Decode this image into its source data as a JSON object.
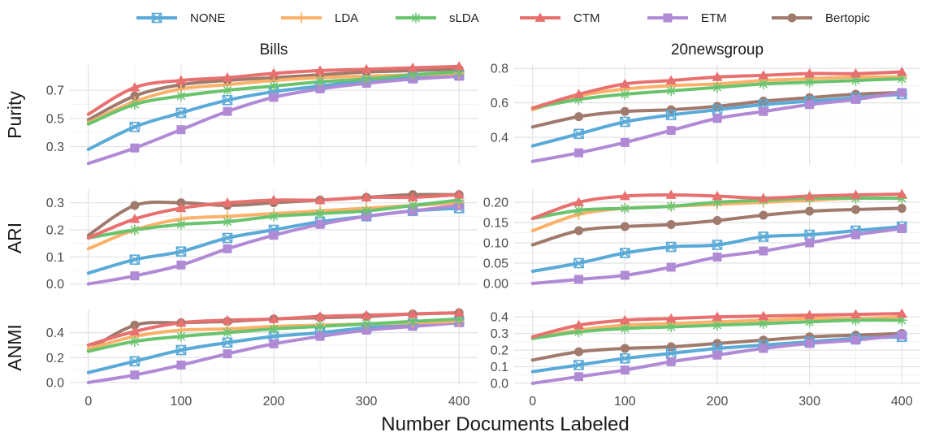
{
  "chart_data": {
    "type": "line",
    "xlabel": "Number Documents Labeled",
    "x": [
      0,
      50,
      100,
      150,
      200,
      250,
      300,
      350,
      400
    ],
    "xticks": [
      0,
      100,
      200,
      300,
      400
    ],
    "columns": [
      "Bills",
      "20newsgroup"
    ],
    "metrics": [
      "Purity",
      "ARI",
      "ANMI"
    ],
    "legend_position": "top",
    "legend": [
      {
        "key": "NONE",
        "label": "NONE",
        "color": "#5aaad8",
        "marker": "boxx"
      },
      {
        "key": "LDA",
        "label": "LDA",
        "color": "#fbb168",
        "marker": "plus"
      },
      {
        "key": "sLDA",
        "label": "sLDA",
        "color": "#6ac46e",
        "marker": "star"
      },
      {
        "key": "CTM",
        "label": "CTM",
        "color": "#e8706f",
        "marker": "triangle"
      },
      {
        "key": "ETM",
        "label": "ETM",
        "color": "#b18ad6",
        "marker": "square"
      },
      {
        "key": "Bertopic",
        "label": "Bertopic",
        "color": "#a07a6c",
        "marker": "circle"
      }
    ],
    "panels": [
      {
        "metric": "Purity",
        "column": "Bills",
        "ylim": [
          0.17,
          0.88
        ],
        "yticks": [
          0.3,
          0.5,
          0.7
        ],
        "ytick_labels": [
          "0.3",
          "0.5",
          "0.7"
        ],
        "series": {
          "NONE": [
            0.28,
            0.44,
            0.54,
            0.63,
            0.69,
            0.73,
            0.77,
            0.79,
            0.81
          ],
          "LDA": [
            0.47,
            0.62,
            0.71,
            0.74,
            0.77,
            0.79,
            0.8,
            0.81,
            0.82
          ],
          "sLDA": [
            0.46,
            0.6,
            0.66,
            0.7,
            0.73,
            0.76,
            0.78,
            0.81,
            0.83
          ],
          "CTM": [
            0.53,
            0.72,
            0.77,
            0.79,
            0.82,
            0.84,
            0.85,
            0.86,
            0.87
          ],
          "ETM": [
            0.18,
            0.29,
            0.42,
            0.55,
            0.65,
            0.71,
            0.75,
            0.78,
            0.8
          ],
          "Bertopic": [
            0.49,
            0.66,
            0.74,
            0.77,
            0.79,
            0.81,
            0.83,
            0.84,
            0.85
          ]
        }
      },
      {
        "metric": "Purity",
        "column": "20newsgroup",
        "ylim": [
          0.24,
          0.82
        ],
        "yticks": [
          0.4,
          0.6,
          0.8
        ],
        "ytick_labels": [
          "0.4",
          "0.6",
          "0.8"
        ],
        "series": {
          "NONE": [
            0.35,
            0.42,
            0.49,
            0.53,
            0.56,
            0.59,
            0.61,
            0.63,
            0.65
          ],
          "LDA": [
            0.56,
            0.64,
            0.68,
            0.7,
            0.71,
            0.73,
            0.74,
            0.75,
            0.75
          ],
          "sLDA": [
            0.57,
            0.62,
            0.65,
            0.67,
            0.69,
            0.71,
            0.72,
            0.73,
            0.74
          ],
          "CTM": [
            0.57,
            0.65,
            0.71,
            0.73,
            0.75,
            0.76,
            0.77,
            0.77,
            0.78
          ],
          "ETM": [
            0.26,
            0.31,
            0.37,
            0.44,
            0.51,
            0.55,
            0.59,
            0.62,
            0.66
          ],
          "Bertopic": [
            0.46,
            0.52,
            0.55,
            0.56,
            0.58,
            0.61,
            0.63,
            0.65,
            0.66
          ]
        }
      },
      {
        "metric": "ARI",
        "column": "Bills",
        "ylim": [
          -0.01,
          0.35
        ],
        "yticks": [
          0.0,
          0.1,
          0.2,
          0.3
        ],
        "ytick_labels": [
          "0.0",
          "0.1",
          "0.2",
          "0.3"
        ],
        "series": {
          "NONE": [
            0.04,
            0.09,
            0.12,
            0.17,
            0.2,
            0.23,
            0.25,
            0.27,
            0.28
          ],
          "LDA": [
            0.13,
            0.2,
            0.24,
            0.25,
            0.26,
            0.27,
            0.28,
            0.29,
            0.3
          ],
          "sLDA": [
            0.17,
            0.2,
            0.22,
            0.23,
            0.25,
            0.26,
            0.27,
            0.29,
            0.31
          ],
          "CTM": [
            0.17,
            0.24,
            0.28,
            0.3,
            0.31,
            0.31,
            0.32,
            0.32,
            0.33
          ],
          "ETM": [
            0.0,
            0.03,
            0.07,
            0.13,
            0.18,
            0.22,
            0.25,
            0.27,
            0.29
          ],
          "Bertopic": [
            0.18,
            0.29,
            0.3,
            0.29,
            0.3,
            0.31,
            0.32,
            0.33,
            0.33
          ]
        }
      },
      {
        "metric": "ARI",
        "column": "20newsgroup",
        "ylim": [
          -0.008,
          0.232
        ],
        "yticks": [
          0.0,
          0.05,
          0.1,
          0.15,
          0.2
        ],
        "ytick_labels": [
          "0.00",
          "0.05",
          "0.10",
          "0.15",
          "0.20"
        ],
        "series": {
          "NONE": [
            0.03,
            0.05,
            0.075,
            0.09,
            0.095,
            0.115,
            0.12,
            0.13,
            0.14
          ],
          "LDA": [
            0.13,
            0.17,
            0.185,
            0.19,
            0.195,
            0.2,
            0.205,
            0.21,
            0.21
          ],
          "sLDA": [
            0.16,
            0.18,
            0.185,
            0.19,
            0.2,
            0.205,
            0.21,
            0.21,
            0.21
          ],
          "CTM": [
            0.16,
            0.2,
            0.215,
            0.218,
            0.215,
            0.21,
            0.215,
            0.218,
            0.22
          ],
          "ETM": [
            0.0,
            0.01,
            0.02,
            0.04,
            0.065,
            0.08,
            0.1,
            0.12,
            0.135
          ],
          "Bertopic": [
            0.095,
            0.13,
            0.14,
            0.145,
            0.155,
            0.168,
            0.178,
            0.182,
            0.185
          ]
        }
      },
      {
        "metric": "ANMI",
        "column": "Bills",
        "ylim": [
          -0.02,
          0.58
        ],
        "yticks": [
          0.0,
          0.2,
          0.4
        ],
        "ytick_labels": [
          "0.0",
          "0.2",
          "0.4"
        ],
        "series": {
          "NONE": [
            0.08,
            0.17,
            0.26,
            0.32,
            0.37,
            0.4,
            0.44,
            0.47,
            0.49
          ],
          "LDA": [
            0.27,
            0.37,
            0.42,
            0.43,
            0.45,
            0.46,
            0.47,
            0.48,
            0.49
          ],
          "sLDA": [
            0.25,
            0.33,
            0.37,
            0.4,
            0.43,
            0.45,
            0.47,
            0.49,
            0.51
          ],
          "CTM": [
            0.3,
            0.41,
            0.48,
            0.5,
            0.51,
            0.53,
            0.54,
            0.55,
            0.56
          ],
          "ETM": [
            0.0,
            0.06,
            0.14,
            0.23,
            0.31,
            0.37,
            0.42,
            0.45,
            0.48
          ],
          "Bertopic": [
            0.26,
            0.46,
            0.48,
            0.49,
            0.51,
            0.52,
            0.53,
            0.55,
            0.56
          ]
        }
      },
      {
        "metric": "ANMI",
        "column": "20newsgroup",
        "ylim": [
          -0.01,
          0.44
        ],
        "yticks": [
          0.0,
          0.1,
          0.2,
          0.3,
          0.4
        ],
        "ytick_labels": [
          "0.0",
          "0.1",
          "0.2",
          "0.3",
          "0.4"
        ],
        "series": {
          "NONE": [
            0.07,
            0.11,
            0.15,
            0.18,
            0.21,
            0.23,
            0.25,
            0.27,
            0.28
          ],
          "LDA": [
            0.27,
            0.32,
            0.35,
            0.36,
            0.37,
            0.38,
            0.39,
            0.39,
            0.4
          ],
          "sLDA": [
            0.27,
            0.31,
            0.33,
            0.34,
            0.35,
            0.36,
            0.37,
            0.38,
            0.38
          ],
          "CTM": [
            0.28,
            0.35,
            0.38,
            0.39,
            0.4,
            0.405,
            0.41,
            0.415,
            0.42
          ],
          "ETM": [
            0.0,
            0.04,
            0.08,
            0.13,
            0.17,
            0.21,
            0.24,
            0.26,
            0.29
          ],
          "Bertopic": [
            0.14,
            0.19,
            0.21,
            0.22,
            0.24,
            0.26,
            0.28,
            0.29,
            0.3
          ]
        }
      }
    ]
  }
}
